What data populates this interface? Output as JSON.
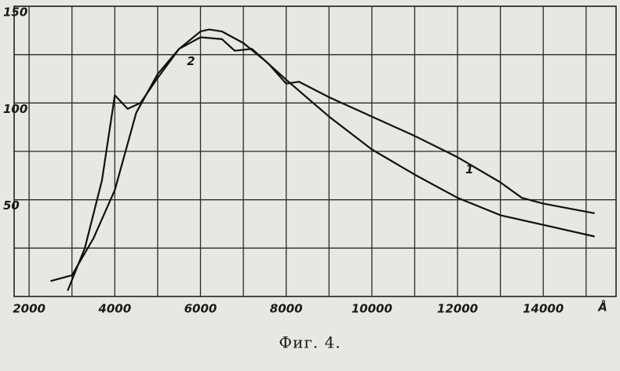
{
  "chart_data": {
    "type": "line",
    "caption": "Фиг. 4.",
    "x_label": "Å",
    "xlim": [
      1650,
      15700
    ],
    "ylim": [
      0,
      150
    ],
    "xticks": [
      2000,
      4000,
      6000,
      8000,
      10000,
      12000,
      14000
    ],
    "yticks": [
      50,
      100,
      150
    ],
    "grid": true,
    "series": [
      {
        "name": "1",
        "color": "#111111",
        "x": [
          2900,
          3300,
          3700,
          4000,
          4300,
          4600,
          5000,
          5500,
          6000,
          6500,
          6800,
          7200,
          7600,
          8000,
          8300,
          9000,
          10000,
          11000,
          12000,
          13000,
          13500,
          14000,
          15200
        ],
        "values": [
          3,
          25,
          60,
          104,
          97,
          100,
          113,
          128,
          134,
          133,
          127,
          128,
          120,
          110,
          111,
          103,
          93,
          83,
          72,
          59,
          51,
          48,
          43
        ]
      },
      {
        "name": "2",
        "color": "#111111",
        "x": [
          2500,
          3000,
          3500,
          4000,
          4500,
          5000,
          5500,
          6000,
          6200,
          6500,
          7000,
          7500,
          8000,
          9000,
          10000,
          11000,
          12000,
          13000,
          14000,
          15200
        ],
        "values": [
          8,
          11,
          30,
          55,
          95,
          115,
          128,
          137,
          138,
          137,
          131,
          122,
          112,
          93,
          76,
          63,
          51,
          42,
          37,
          31
        ]
      }
    ]
  }
}
